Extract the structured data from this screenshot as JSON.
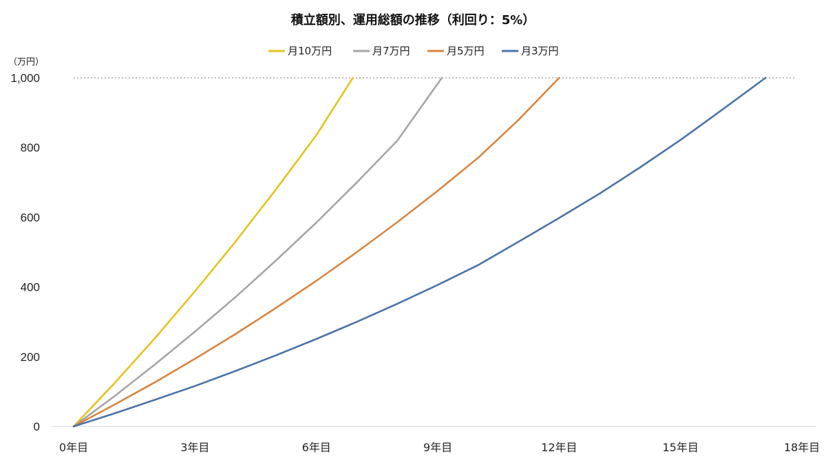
{
  "chart_data": {
    "type": "line",
    "title": "積立額別、運用総額の推移（利回り：5%）",
    "y_unit": "（万円）",
    "xlabel": "",
    "ylabel": "",
    "ylim": [
      0,
      1000
    ],
    "xlim": [
      0,
      18
    ],
    "grid": false,
    "reference_line": {
      "y": 1000,
      "style": "dotted"
    },
    "legend_position": "top-center",
    "y_ticks": [
      {
        "value": 0,
        "label": "0"
      },
      {
        "value": 200,
        "label": "200"
      },
      {
        "value": 400,
        "label": "400"
      },
      {
        "value": 600,
        "label": "600"
      },
      {
        "value": 800,
        "label": "800"
      },
      {
        "value": 1000,
        "label": "1,000"
      }
    ],
    "x_ticks": [
      {
        "value": 0,
        "label": "0年目"
      },
      {
        "value": 3,
        "label": "3年目"
      },
      {
        "value": 6,
        "label": "6年目"
      },
      {
        "value": 9,
        "label": "9年目"
      },
      {
        "value": 12,
        "label": "12年目"
      },
      {
        "value": 15,
        "label": "15年目"
      },
      {
        "value": 18,
        "label": "18年目"
      }
    ],
    "series": [
      {
        "name": "月10万円",
        "color": "#E8C21A",
        "points": [
          [
            0,
            0
          ],
          [
            1,
            123
          ],
          [
            2,
            252
          ],
          [
            3,
            388
          ],
          [
            4,
            530
          ],
          [
            5,
            680
          ],
          [
            6,
            836
          ],
          [
            6.9,
            1000
          ]
        ]
      },
      {
        "name": "月7万円",
        "color": "#A5A5A5",
        "points": [
          [
            0,
            0
          ],
          [
            1,
            86
          ],
          [
            2,
            177
          ],
          [
            3,
            272
          ],
          [
            4,
            371
          ],
          [
            5,
            476
          ],
          [
            6,
            585
          ],
          [
            7,
            700
          ],
          [
            8,
            820
          ],
          [
            9.1,
            1000
          ]
        ]
      },
      {
        "name": "月5万円",
        "color": "#D9843E",
        "points": [
          [
            0,
            0
          ],
          [
            1,
            62
          ],
          [
            2,
            126
          ],
          [
            3,
            194
          ],
          [
            4,
            265
          ],
          [
            5,
            340
          ],
          [
            6,
            418
          ],
          [
            7,
            500
          ],
          [
            8,
            586
          ],
          [
            9,
            676
          ],
          [
            10,
            771
          ],
          [
            11,
            880
          ],
          [
            12,
            1000
          ]
        ]
      },
      {
        "name": "月3万円",
        "color": "#4A73A8",
        "points": [
          [
            0,
            0
          ],
          [
            1,
            37
          ],
          [
            2,
            76
          ],
          [
            3,
            116
          ],
          [
            4,
            159
          ],
          [
            5,
            204
          ],
          [
            6,
            251
          ],
          [
            7,
            300
          ],
          [
            8,
            352
          ],
          [
            9,
            406
          ],
          [
            10,
            463
          ],
          [
            11,
            530
          ],
          [
            12,
            598
          ],
          [
            13,
            668
          ],
          [
            14,
            743
          ],
          [
            15,
            822
          ],
          [
            16,
            906
          ],
          [
            17.1,
            1000
          ]
        ]
      }
    ]
  }
}
